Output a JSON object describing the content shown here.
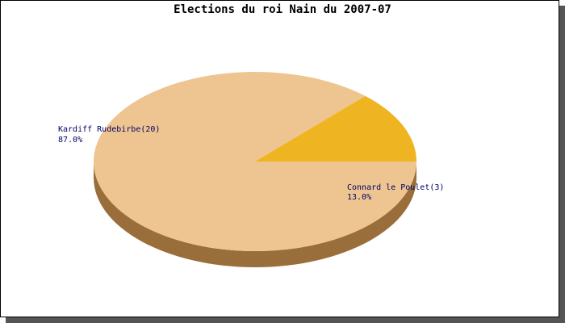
{
  "chart_data": {
    "type": "pie",
    "title": "Elections du roi Nain du 2007-07",
    "slices": [
      {
        "label": "Kardiff Rudebirbe(20)",
        "value": 20,
        "percent_label": "87.0%",
        "color": "#eec591",
        "side_color": "#9a6e3a"
      },
      {
        "label": "Connard le Poulet(3)",
        "value": 3,
        "percent_label": "13.0%",
        "color": "#eeb422",
        "side_color": "#9a6410"
      }
    ]
  }
}
